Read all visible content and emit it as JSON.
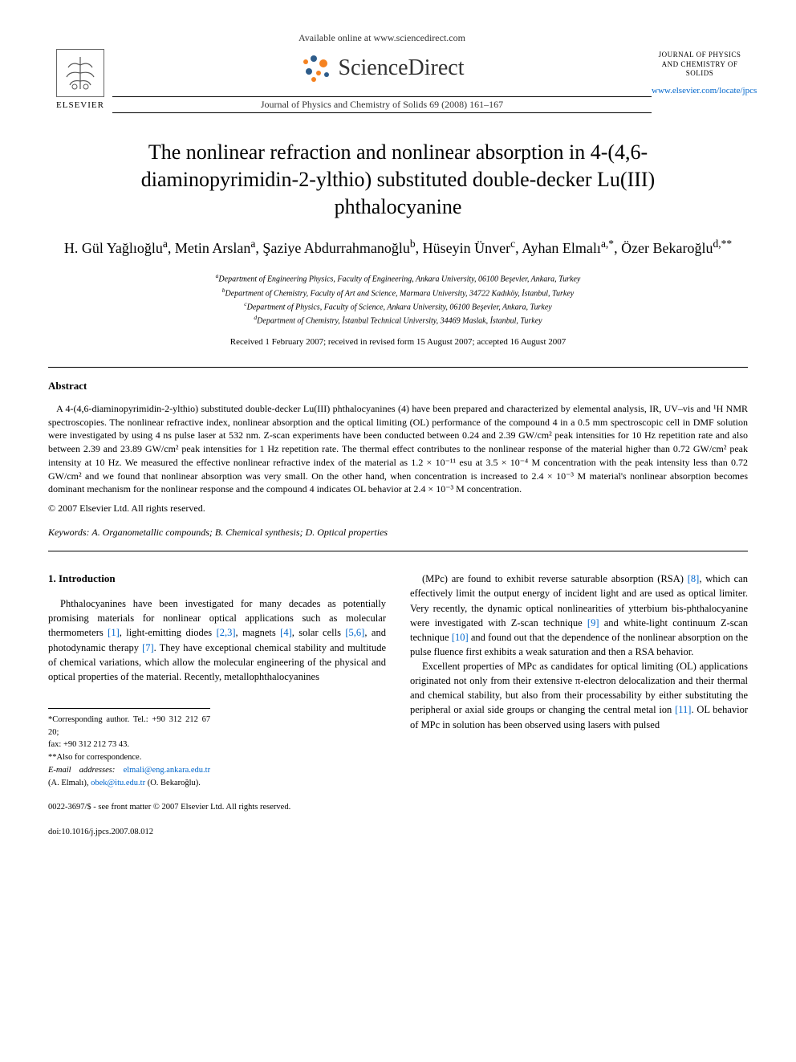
{
  "header": {
    "available_text": "Available online at www.sciencedirect.com",
    "sciencedirect": "ScienceDirect",
    "journal_ref": "Journal of Physics and Chemistry of Solids 69 (2008) 161–167",
    "elsevier": "ELSEVIER",
    "journal_box": "JOURNAL OF PHYSICS AND CHEMISTRY OF SOLIDS",
    "locate_url": "www.elsevier.com/locate/jpcs"
  },
  "title": "The nonlinear refraction and nonlinear absorption in 4-(4,6-diaminopyrimidin-2-ylthio) substituted double-decker Lu(III) phthalocyanine",
  "authors_html": "H. Gül Yağlıoğlu<sup>a</sup>, Metin Arslan<sup>a</sup>, Şaziye Abdurrahmanoğlu<sup>b</sup>, Hüseyin Ünver<sup>c</sup>, Ayhan Elmalı<sup>a,*</sup>, Özer Bekaroğlu<sup>d,**</sup>",
  "affiliations": {
    "a": "Department of Engineering Physics, Faculty of Engineering, Ankara University, 06100 Beşevler, Ankara, Turkey",
    "b": "Department of Chemistry, Faculty of Art and Science, Marmara University, 34722 Kadıköy, İstanbul, Turkey",
    "c": "Department of Physics, Faculty of Science, Ankara University, 06100 Beşevler, Ankara, Turkey",
    "d": "Department of Chemistry, İstanbul Technical University, 34469 Maslak, İstanbul, Turkey"
  },
  "received": "Received 1 February 2007; received in revised form 15 August 2007; accepted 16 August 2007",
  "abstract": {
    "heading": "Abstract",
    "text": "A 4-(4,6-diaminopyrimidin-2-ylthio) substituted double-decker Lu(III) phthalocyanines (4) have been prepared and characterized by elemental analysis, IR, UV–vis and ¹H NMR spectroscopies. The nonlinear refractive index, nonlinear absorption and the optical limiting (OL) performance of the compound 4 in a 0.5 mm spectroscopic cell in DMF solution were investigated by using 4 ns pulse laser at 532 nm. Z-scan experiments have been conducted between 0.24 and 2.39 GW/cm² peak intensities for 10 Hz repetition rate and also between 2.39 and 23.89 GW/cm² peak intensities for 1 Hz repetition rate. The thermal effect contributes to the nonlinear response of the material higher than 0.72 GW/cm² peak intensity at 10 Hz. We measured the effective nonlinear refractive index of the material as 1.2 × 10⁻¹¹ esu at 3.5 × 10⁻⁴ M concentration with the peak intensity less than 0.72 GW/cm² and we found that nonlinear absorption was very small. On the other hand, when concentration is increased to 2.4 × 10⁻³ M material's nonlinear absorption becomes dominant mechanism for the nonlinear response and the compound 4 indicates OL behavior at 2.4 × 10⁻³ M concentration.",
    "copyright": "© 2007 Elsevier Ltd. All rights reserved."
  },
  "keywords": {
    "label": "Keywords:",
    "text": "A. Organometallic compounds; B. Chemical synthesis; D. Optical properties"
  },
  "intro": {
    "heading": "1. Introduction",
    "left_p1": "Phthalocyanines have been investigated for many decades as potentially promising materials for nonlinear optical applications such as molecular thermometers [1], light-emitting diodes [2,3], magnets [4], solar cells [5,6], and photodynamic therapy [7]. They have exceptional chemical stability and multitude of chemical variations, which allow the molecular engineering of the physical and optical properties of the material. Recently, metallophthalocyanines",
    "right_p1": "(MPc) are found to exhibit reverse saturable absorption (RSA) [8], which can effectively limit the output energy of incident light and are used as optical limiter. Very recently, the dynamic optical nonlinearities of ytterbium bis-phthalocyanine were investigated with Z-scan technique [9] and white-light continuum Z-scan technique [10] and found out that the dependence of the nonlinear absorption on the pulse fluence first exhibits a weak saturation and then a RSA behavior.",
    "right_p2": "Excellent properties of MPc as candidates for optical limiting (OL) applications originated not only from their extensive π-electron delocalization and their thermal and chemical stability, but also from their processability by either substituting the peripheral or axial side groups or changing the central metal ion [11]. OL behavior of MPc in solution has been observed using lasers with pulsed"
  },
  "footnotes": {
    "corr1": "*Corresponding author. Tel.: +90 312 212 67 20;",
    "fax": "fax: +90 312 212 73 43.",
    "corr2": "**Also for correspondence.",
    "emails_label": "E-mail addresses:",
    "email1": "elmali@eng.ankara.edu.tr",
    "email1_who": "(A. Elmalı),",
    "email2": "obek@itu.edu.tr",
    "email2_who": "(O. Bekaroğlu)."
  },
  "footer": {
    "issn": "0022-3697/$ - see front matter © 2007 Elsevier Ltd. All rights reserved.",
    "doi": "doi:10.1016/j.jpcs.2007.08.012"
  },
  "colors": {
    "text": "#000000",
    "link": "#0066cc",
    "background": "#ffffff",
    "sd_orange": "#f58220",
    "sd_blue": "#2e5c8a"
  }
}
